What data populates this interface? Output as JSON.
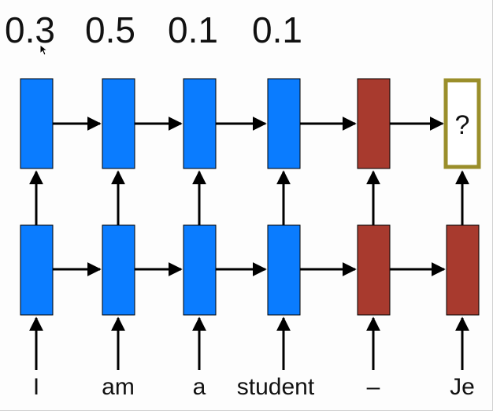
{
  "weights": [
    "0.3",
    "0.5",
    "0.1",
    "0.1"
  ],
  "words": [
    "I",
    "am",
    "a",
    "student",
    "–",
    "Je"
  ],
  "unknown_output_label": "?",
  "cell_kinds": [
    "encoder",
    "encoder",
    "encoder",
    "encoder",
    "decoder",
    "decoder"
  ],
  "colors": {
    "encoder": "#0a7cff",
    "decoder": "#a83a2e",
    "highlight_border": "#9a8e2a",
    "arrow": "#000000"
  }
}
